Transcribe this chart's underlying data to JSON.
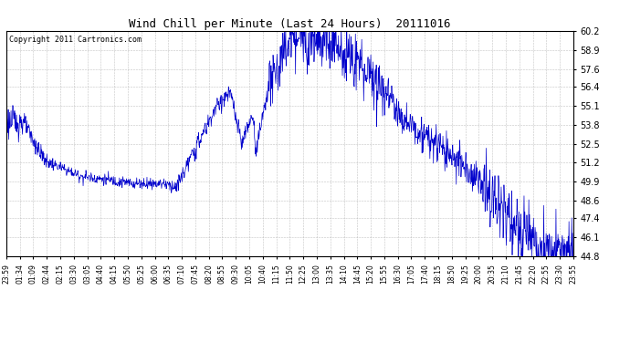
{
  "title": "Wind Chill per Minute (Last 24 Hours)  20111016",
  "copyright": "Copyright 2011 Cartronics.com",
  "line_color": "#0000cc",
  "background_color": "#ffffff",
  "grid_color": "#aaaaaa",
  "ylim": [
    44.8,
    60.2
  ],
  "yticks": [
    44.8,
    46.1,
    47.4,
    48.6,
    49.9,
    51.2,
    52.5,
    53.8,
    55.1,
    56.4,
    57.6,
    58.9,
    60.2
  ],
  "n_points": 1440,
  "figsize": [
    6.9,
    3.75
  ],
  "dpi": 100
}
